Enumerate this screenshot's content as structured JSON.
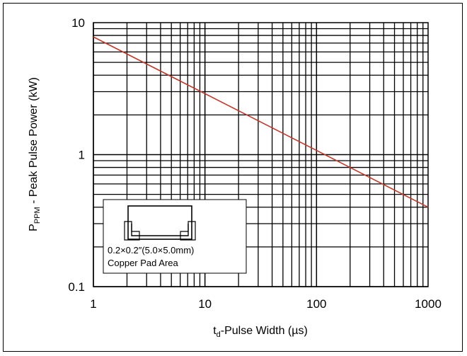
{
  "chart_data": {
    "type": "line",
    "xscale": "log",
    "yscale": "log",
    "xlim": [
      1,
      1000
    ],
    "ylim": [
      0.1,
      10
    ],
    "grid": true,
    "x_ticks": [
      "1",
      "10",
      "100",
      "1000"
    ],
    "y_ticks": [
      "10",
      "1",
      "0.1"
    ],
    "ylabel_prefix": "P",
    "ylabel_sub": "PPM",
    "ylabel_rest": " - Peak Pulse Power (kW)",
    "xlabel_prefix": "t",
    "xlabel_sub": "d",
    "xlabel_rest": "-Pulse Width (µs)",
    "series": [
      {
        "x": [
          1,
          1000
        ],
        "y": [
          7.8,
          0.4
        ],
        "color": "#c0392b"
      }
    ],
    "inset": {
      "line1": "0.2×0.2″(5.0×5.0mm)",
      "line2": "Copper Pad Area"
    }
  }
}
